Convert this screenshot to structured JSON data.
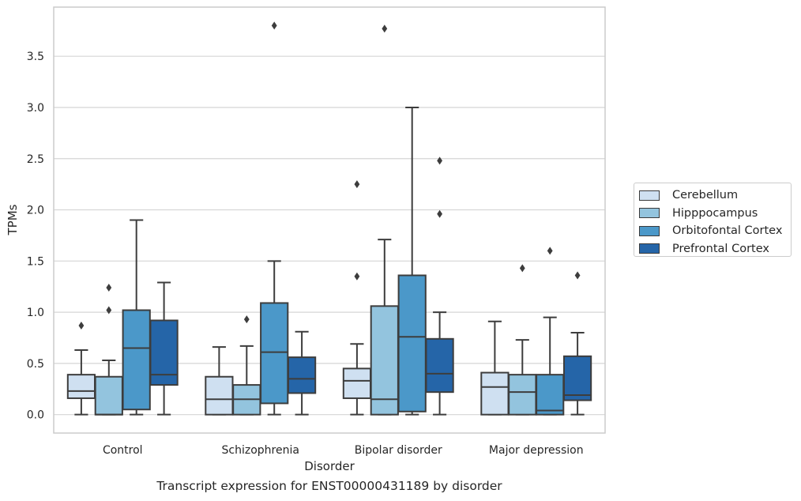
{
  "chart_data": {
    "type": "box",
    "title": "",
    "caption": "Transcript expression for ENST00000431189 by disorder",
    "xlabel": "Disorder",
    "ylabel": "TPMs",
    "ylim": [
      -0.18,
      3.98
    ],
    "yticks": [
      "0.0",
      "0.5",
      "1.0",
      "1.5",
      "2.0",
      "2.5",
      "3.0",
      "3.5"
    ],
    "grid": "horizontal",
    "legend_position": "right",
    "categories": [
      "Control",
      "Schizophrenia",
      "Bipolar disorder",
      "Major depression"
    ],
    "series": [
      {
        "name": "Cerebellum",
        "color": "#cfe0f1",
        "boxes": [
          {
            "whislo": 0.0,
            "q1": 0.16,
            "med": 0.23,
            "q3": 0.39,
            "whishi": 0.63,
            "fliers": [
              0.87
            ]
          },
          {
            "whislo": 0.0,
            "q1": 0.0,
            "med": 0.15,
            "q3": 0.37,
            "whishi": 0.66,
            "fliers": []
          },
          {
            "whislo": 0.0,
            "q1": 0.16,
            "med": 0.33,
            "q3": 0.45,
            "whishi": 0.69,
            "fliers": [
              1.35,
              2.25
            ]
          },
          {
            "whislo": 0.0,
            "q1": 0.0,
            "med": 0.27,
            "q3": 0.41,
            "whishi": 0.91,
            "fliers": []
          }
        ]
      },
      {
        "name": "Hipppocampus",
        "color": "#93c4de",
        "boxes": [
          {
            "whislo": 0.0,
            "q1": 0.0,
            "med": 0.0,
            "q3": 0.37,
            "whishi": 0.53,
            "fliers": [
              1.02,
              1.24
            ]
          },
          {
            "whislo": 0.0,
            "q1": 0.0,
            "med": 0.15,
            "q3": 0.29,
            "whishi": 0.67,
            "fliers": [
              0.93
            ]
          },
          {
            "whislo": 0.0,
            "q1": 0.0,
            "med": 0.15,
            "q3": 1.06,
            "whishi": 1.71,
            "fliers": [
              3.77
            ]
          },
          {
            "whislo": 0.0,
            "q1": 0.0,
            "med": 0.22,
            "q3": 0.39,
            "whishi": 0.73,
            "fliers": [
              1.43
            ]
          }
        ]
      },
      {
        "name": "Orbitofontal Cortex",
        "color": "#4b98c9",
        "boxes": [
          {
            "whislo": 0.0,
            "q1": 0.05,
            "med": 0.65,
            "q3": 1.02,
            "whishi": 1.9,
            "fliers": []
          },
          {
            "whislo": 0.0,
            "q1": 0.11,
            "med": 0.61,
            "q3": 1.09,
            "whishi": 1.5,
            "fliers": [
              3.8
            ]
          },
          {
            "whislo": 0.0,
            "q1": 0.03,
            "med": 0.76,
            "q3": 1.36,
            "whishi": 3.0,
            "fliers": []
          },
          {
            "whislo": 0.0,
            "q1": 0.0,
            "med": 0.04,
            "q3": 0.39,
            "whishi": 0.95,
            "fliers": [
              1.6
            ]
          }
        ]
      },
      {
        "name": "Prefrontal Cortex",
        "color": "#2565a8",
        "boxes": [
          {
            "whislo": 0.0,
            "q1": 0.29,
            "med": 0.39,
            "q3": 0.92,
            "whishi": 1.29,
            "fliers": []
          },
          {
            "whislo": 0.0,
            "q1": 0.21,
            "med": 0.35,
            "q3": 0.56,
            "whishi": 0.81,
            "fliers": []
          },
          {
            "whislo": 0.0,
            "q1": 0.22,
            "med": 0.4,
            "q3": 0.74,
            "whishi": 1.0,
            "fliers": [
              1.96,
              2.48
            ]
          },
          {
            "whislo": 0.0,
            "q1": 0.14,
            "med": 0.19,
            "q3": 0.57,
            "whishi": 0.8,
            "fliers": [
              1.36
            ]
          }
        ]
      }
    ]
  }
}
